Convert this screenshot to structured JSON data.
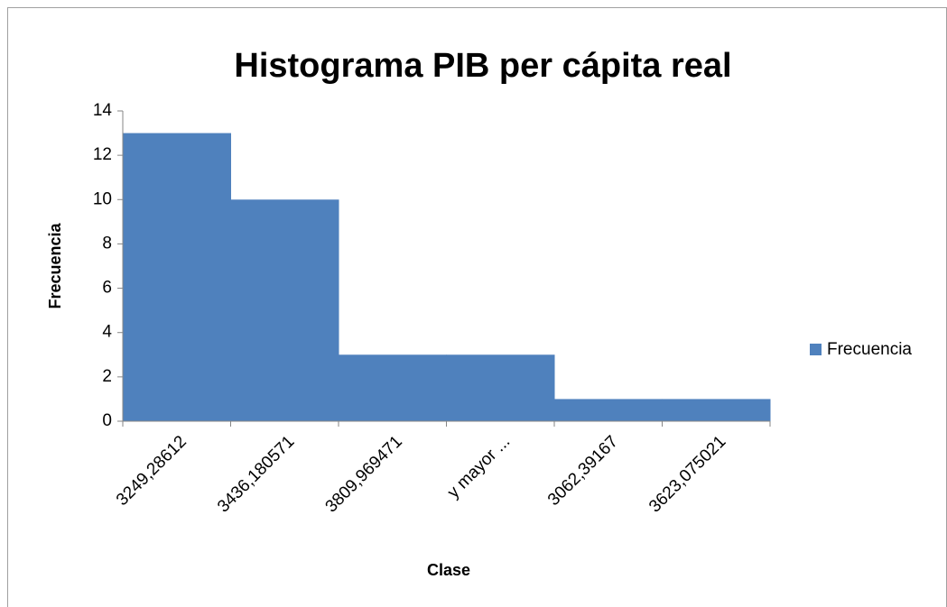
{
  "chart_data": {
    "type": "bar",
    "title": "Histograma PIB per cápita real",
    "x_label": "Clase",
    "y_label": "Frecuencia",
    "categories": [
      "3249,28612",
      "3436,180571",
      "3809,969471",
      "y mayor ...",
      "3062,39167",
      "3623,075021"
    ],
    "series": [
      {
        "name": "Frecuencia",
        "color": "#4f81bd",
        "values": [
          13,
          10,
          3,
          3,
          1,
          1
        ]
      }
    ],
    "ylim": [
      0,
      14
    ],
    "yticks": [
      0,
      2,
      4,
      6,
      8,
      10,
      12,
      14
    ],
    "grid": false,
    "legend": "right"
  }
}
